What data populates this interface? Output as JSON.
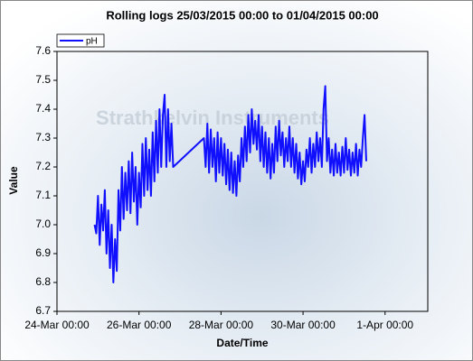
{
  "chart_data": {
    "type": "line",
    "title": "Rolling logs 25/03/2015 00:00 to 01/04/2015 00:00",
    "watermark": "Strathkelvin Instruments",
    "x_label": "Date/Time",
    "y_label": "Value",
    "legend": "top-left",
    "xlim": [
      0,
      217
    ],
    "xticks": [
      {
        "value": 0,
        "label": "24-Mar 00:00"
      },
      {
        "value": 48,
        "label": "26-Mar 00:00"
      },
      {
        "value": 96,
        "label": "28-Mar 00:00"
      },
      {
        "value": 144,
        "label": "30-Mar 00:00"
      },
      {
        "value": 192,
        "label": "1-Apr 00:00"
      }
    ],
    "ylim": [
      6.7,
      7.6
    ],
    "yticks": [
      6.7,
      6.8,
      6.9,
      {
        "value": 7.0,
        "label": "7.0"
      },
      7.1,
      7.2,
      7.3,
      7.4,
      7.5,
      7.6
    ],
    "x": [
      22,
      23,
      24,
      25,
      26,
      27,
      28,
      29,
      30,
      31,
      32,
      33,
      34,
      35,
      36,
      37,
      38,
      39,
      40,
      41,
      42,
      43,
      44,
      45,
      46,
      47,
      48,
      49,
      50,
      51,
      52,
      53,
      54,
      55,
      56,
      57,
      58,
      59,
      60,
      61,
      62,
      63,
      64,
      65,
      66,
      67,
      68,
      86,
      87,
      88,
      89,
      90,
      91,
      92,
      93,
      94,
      95,
      96,
      97,
      98,
      99,
      100,
      101,
      102,
      103,
      104,
      105,
      106,
      107,
      108,
      109,
      110,
      111,
      112,
      113,
      114,
      115,
      116,
      117,
      118,
      119,
      120,
      121,
      122,
      123,
      124,
      125,
      126,
      127,
      128,
      129,
      130,
      131,
      132,
      133,
      134,
      135,
      136,
      137,
      138,
      139,
      140,
      141,
      142,
      143,
      144,
      145,
      146,
      147,
      148,
      149,
      150,
      151,
      152,
      153,
      154,
      155,
      156,
      157,
      158,
      159,
      160,
      161,
      162,
      163,
      164,
      165,
      166,
      167,
      168,
      169,
      170,
      171,
      172,
      173,
      174,
      175,
      176,
      177,
      178,
      179,
      180,
      181
    ],
    "series": [
      {
        "name": "pH",
        "color": "#1010ff",
        "values": [
          7.0,
          6.97,
          7.1,
          6.93,
          7.07,
          6.98,
          7.12,
          6.9,
          7.05,
          6.85,
          7.0,
          6.8,
          6.95,
          6.84,
          7.12,
          6.98,
          7.2,
          7.02,
          7.18,
          7.05,
          7.22,
          7.04,
          7.25,
          7.08,
          7.2,
          7.0,
          7.18,
          7.06,
          7.28,
          7.1,
          7.3,
          7.12,
          7.26,
          7.1,
          7.32,
          7.15,
          7.36,
          7.18,
          7.4,
          7.2,
          7.38,
          7.45,
          7.2,
          7.4,
          7.22,
          7.35,
          7.2,
          7.3,
          7.2,
          7.35,
          7.18,
          7.33,
          7.2,
          7.3,
          7.15,
          7.32,
          7.18,
          7.3,
          7.17,
          7.28,
          7.14,
          7.26,
          7.12,
          7.25,
          7.11,
          7.22,
          7.1,
          7.24,
          7.15,
          7.3,
          7.2,
          7.34,
          7.22,
          7.38,
          7.25,
          7.4,
          7.28,
          7.36,
          7.26,
          7.38,
          7.22,
          7.34,
          7.2,
          7.32,
          7.18,
          7.3,
          7.16,
          7.28,
          7.18,
          7.34,
          7.22,
          7.36,
          7.24,
          7.32,
          7.2,
          7.3,
          7.22,
          7.34,
          7.2,
          7.3,
          7.18,
          7.28,
          7.16,
          7.25,
          7.14,
          7.22,
          7.15,
          7.26,
          7.2,
          7.3,
          7.18,
          7.28,
          7.2,
          7.32,
          7.22,
          7.3,
          7.2,
          7.4,
          7.48,
          7.22,
          7.3,
          7.18,
          7.26,
          7.17,
          7.28,
          7.18,
          7.25,
          7.17,
          7.27,
          7.18,
          7.3,
          7.19,
          7.26,
          7.17,
          7.25,
          7.18,
          7.28,
          7.17,
          7.26,
          7.2,
          7.3,
          7.38,
          7.22
        ]
      }
    ]
  }
}
